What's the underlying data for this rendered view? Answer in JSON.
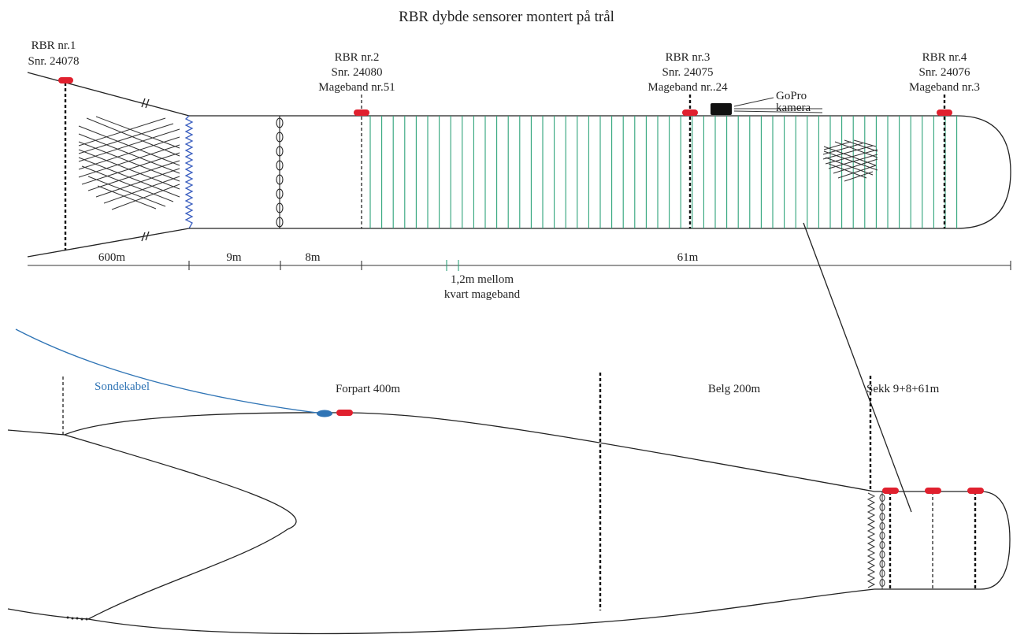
{
  "title": "RBR dybde sensorer montert på trål",
  "sensors": [
    {
      "line1": "RBR nr.1",
      "line2": "Snr. 24078",
      "line3": ""
    },
    {
      "line1": "RBR nr.2",
      "line2": "Snr. 24080",
      "line3": "Mageband nr.51"
    },
    {
      "line1": "RBR nr.3",
      "line2": "Snr. 24075",
      "line3": "Mageband nr..24"
    },
    {
      "line1": "RBR nr.4",
      "line2": "Snr. 24076",
      "line3": "Mageband nr.3"
    }
  ],
  "gopro": {
    "line1": "GoPro",
    "line2": "kamera"
  },
  "dimensions": [
    "600m",
    "9m",
    "8m",
    "61m"
  ],
  "spacing_note": {
    "line1": "1,2m mellom",
    "line2": "kvart mageband"
  },
  "lower": {
    "cable_label": "Sondekabel",
    "sections": [
      "Forpart 400m",
      "Belg 200m",
      "Sekk 9+8+61m"
    ]
  },
  "colors": {
    "sensor": "#e0202e",
    "cable": "#2f74b5",
    "mageband": "#2ea37a",
    "zigzag": "#3b5fc0"
  }
}
